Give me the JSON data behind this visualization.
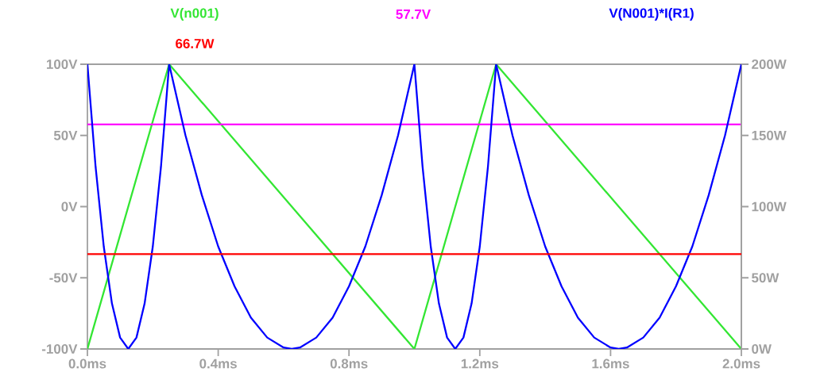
{
  "chart_data": {
    "type": "line",
    "series": [
      {
        "name": "V(n001)",
        "color": "#33e633",
        "x": [
          0,
          0.25,
          1.0,
          1.25,
          2.0
        ],
        "values": [
          -100,
          100,
          -100,
          100,
          -100
        ]
      },
      {
        "name": "V(N001)*I(R1)",
        "color": "#0000ff",
        "axis": "y2",
        "x": [
          0,
          0.025,
          0.05,
          0.075,
          0.1,
          0.125,
          0.15,
          0.175,
          0.2,
          0.225,
          0.25,
          0.3,
          0.35,
          0.4,
          0.45,
          0.5,
          0.55,
          0.6,
          0.625,
          0.65,
          0.7,
          0.75,
          0.8,
          0.85,
          0.9,
          0.95,
          1.0,
          1.025,
          1.05,
          1.075,
          1.1,
          1.125,
          1.15,
          1.175,
          1.2,
          1.225,
          1.25,
          1.3,
          1.35,
          1.4,
          1.45,
          1.5,
          1.55,
          1.6,
          1.625,
          1.65,
          1.7,
          1.75,
          1.8,
          1.85,
          1.9,
          1.95,
          2.0
        ],
        "values": [
          200,
          128,
          72,
          32,
          8,
          0,
          8,
          32,
          72,
          128,
          200,
          150,
          108,
          72,
          44,
          22,
          8,
          1,
          0,
          1,
          8,
          22,
          44,
          72,
          108,
          150,
          200,
          128,
          72,
          32,
          8,
          0,
          8,
          32,
          72,
          128,
          200,
          150,
          108,
          72,
          44,
          22,
          8,
          1,
          0,
          1,
          8,
          22,
          44,
          72,
          108,
          150,
          200
        ]
      }
    ],
    "ref_lines": [
      {
        "axis": "y",
        "value": 57.7,
        "label": "57.7V",
        "color": "#ff00ff"
      },
      {
        "axis": "y2",
        "value": 66.7,
        "label": "66.7W",
        "color": "#ff0000"
      }
    ],
    "xlim": [
      0,
      2.0
    ],
    "xticks": [
      {
        "value": 0,
        "label": "0.0ms"
      },
      {
        "value": 0.4,
        "label": "0.4ms"
      },
      {
        "value": 0.8,
        "label": "0.8ms"
      },
      {
        "value": 1.2,
        "label": "1.2ms"
      },
      {
        "value": 1.6,
        "label": "1.6ms"
      },
      {
        "value": 2.0,
        "label": "2.0ms"
      }
    ],
    "ylim": [
      -100,
      100
    ],
    "yticks": [
      {
        "value": -100,
        "label": "-100V"
      },
      {
        "value": -50,
        "label": "-50V"
      },
      {
        "value": 0,
        "label": "0V"
      },
      {
        "value": 50,
        "label": "50V"
      },
      {
        "value": 100,
        "label": "100V"
      }
    ],
    "y2lim": [
      0,
      200
    ],
    "y2ticks": [
      {
        "value": 0,
        "label": "0W"
      },
      {
        "value": 50,
        "label": "50W"
      },
      {
        "value": 100,
        "label": "100W"
      },
      {
        "value": 150,
        "label": "150W"
      },
      {
        "value": 200,
        "label": "200W"
      }
    ]
  }
}
